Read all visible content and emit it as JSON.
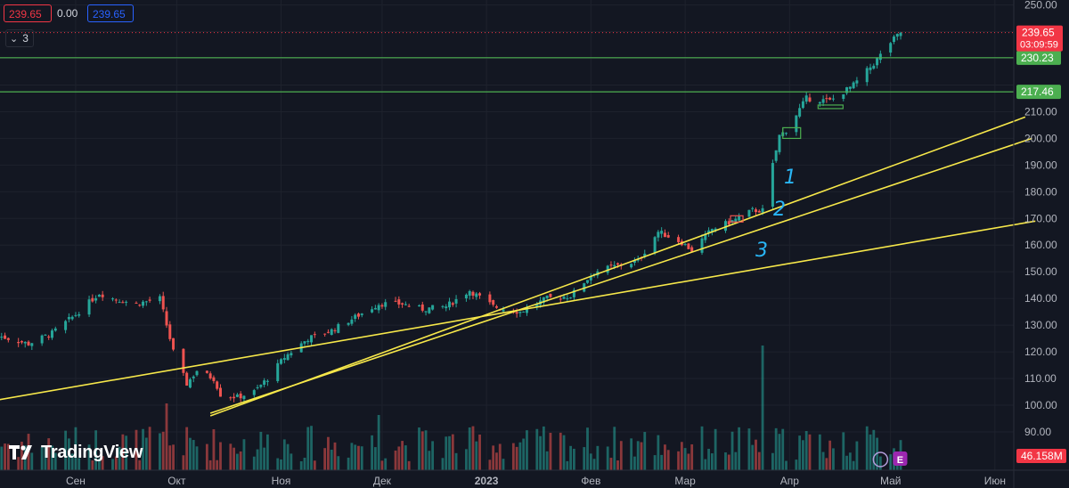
{
  "header": {
    "bid": "239.65",
    "spread": "0.00",
    "ask": "239.65",
    "indicator_count": "3"
  },
  "logo": {
    "text": "TradingView"
  },
  "price_tag": {
    "price": "239.65",
    "countdown": "03:09:59"
  },
  "levels": [
    {
      "label": "230.23",
      "value": 230.23
    },
    {
      "label": "217.46",
      "value": 217.46
    }
  ],
  "volume_tag": "46.158M",
  "annotations": [
    "1",
    "2",
    "3"
  ],
  "earnings_marker": "E",
  "colors": {
    "background": "#131722",
    "up": "#26a69a",
    "down": "#ef5350",
    "trendline": "#f7e84a",
    "level": "#4caf50",
    "annotation": "#29b6f6"
  },
  "chart_data": {
    "type": "candlestick",
    "y_axis": {
      "ticks": [
        "250.00",
        "240.00",
        "230.00",
        "220.00",
        "210.00",
        "200.00",
        "190.00",
        "180.00",
        "170.00",
        "160.00",
        "150.00",
        "140.00",
        "130.00",
        "120.00",
        "110.00",
        "100.00",
        "90.00"
      ],
      "range": [
        85,
        251
      ]
    },
    "x_axis": {
      "labels": [
        "Сен",
        "Окт",
        "Ноя",
        "Дек",
        "2023",
        "Фев",
        "Мар",
        "Апр",
        "Май",
        "Июн"
      ],
      "range": [
        "2022-08-09",
        "2023-06-15"
      ]
    },
    "close_anchors": [
      [
        "2022-08-09",
        126
      ],
      [
        "2022-08-18",
        123
      ],
      [
        "2022-08-25",
        127
      ],
      [
        "2022-09-01",
        134
      ],
      [
        "2022-09-08",
        142
      ],
      [
        "2022-09-12",
        140
      ],
      [
        "2022-09-19",
        138
      ],
      [
        "2022-09-26",
        140
      ],
      [
        "2022-09-28",
        130
      ],
      [
        "2022-09-30",
        120
      ],
      [
        "2022-10-04",
        108
      ],
      [
        "2022-10-07",
        113
      ],
      [
        "2022-10-12",
        110
      ],
      [
        "2022-10-14",
        104
      ],
      [
        "2022-10-19",
        103
      ],
      [
        "2022-10-24",
        105
      ],
      [
        "2022-10-28",
        110
      ],
      [
        "2022-11-02",
        118
      ],
      [
        "2022-11-09",
        125
      ],
      [
        "2022-11-16",
        128
      ],
      [
        "2022-11-23",
        133
      ],
      [
        "2022-11-30",
        138
      ],
      [
        "2022-12-07",
        138
      ],
      [
        "2022-12-13",
        136
      ],
      [
        "2022-12-20",
        137
      ],
      [
        "2022-12-27",
        143
      ],
      [
        "2023-01-03",
        137
      ],
      [
        "2023-01-11",
        135
      ],
      [
        "2023-01-19",
        140
      ],
      [
        "2023-01-26",
        141
      ],
      [
        "2023-02-02",
        150
      ],
      [
        "2023-02-08",
        152
      ],
      [
        "2023-02-15",
        154
      ],
      [
        "2023-02-21",
        165
      ],
      [
        "2023-02-28",
        161
      ],
      [
        "2023-03-03",
        158
      ],
      [
        "2023-03-09",
        166
      ],
      [
        "2023-03-15",
        169
      ],
      [
        "2023-03-21",
        173
      ],
      [
        "2023-03-24",
        173
      ],
      [
        "2023-03-27",
        190
      ],
      [
        "2023-03-29",
        201
      ],
      [
        "2023-03-31",
        203
      ],
      [
        "2023-04-06",
        215
      ],
      [
        "2023-04-13",
        214
      ],
      [
        "2023-04-20",
        220
      ],
      [
        "2023-04-26",
        228
      ],
      [
        "2023-05-01",
        236
      ],
      [
        "2023-05-04",
        239.65
      ]
    ],
    "trendlines": [
      {
        "name": "1",
        "from": [
          "2022-10-11",
          96
        ],
        "to": [
          "2023-06-10",
          208
        ]
      },
      {
        "name": "2",
        "from": [
          "2022-10-11",
          97
        ],
        "to": [
          "2023-06-12",
          200
        ]
      },
      {
        "name": "3",
        "from": [
          "2022-08-09",
          102
        ],
        "to": [
          "2023-06-13",
          169
        ]
      }
    ],
    "horizontal_levels": [
      230.23,
      217.46
    ],
    "last_price": 239.65,
    "last_volume": "46.158M"
  }
}
